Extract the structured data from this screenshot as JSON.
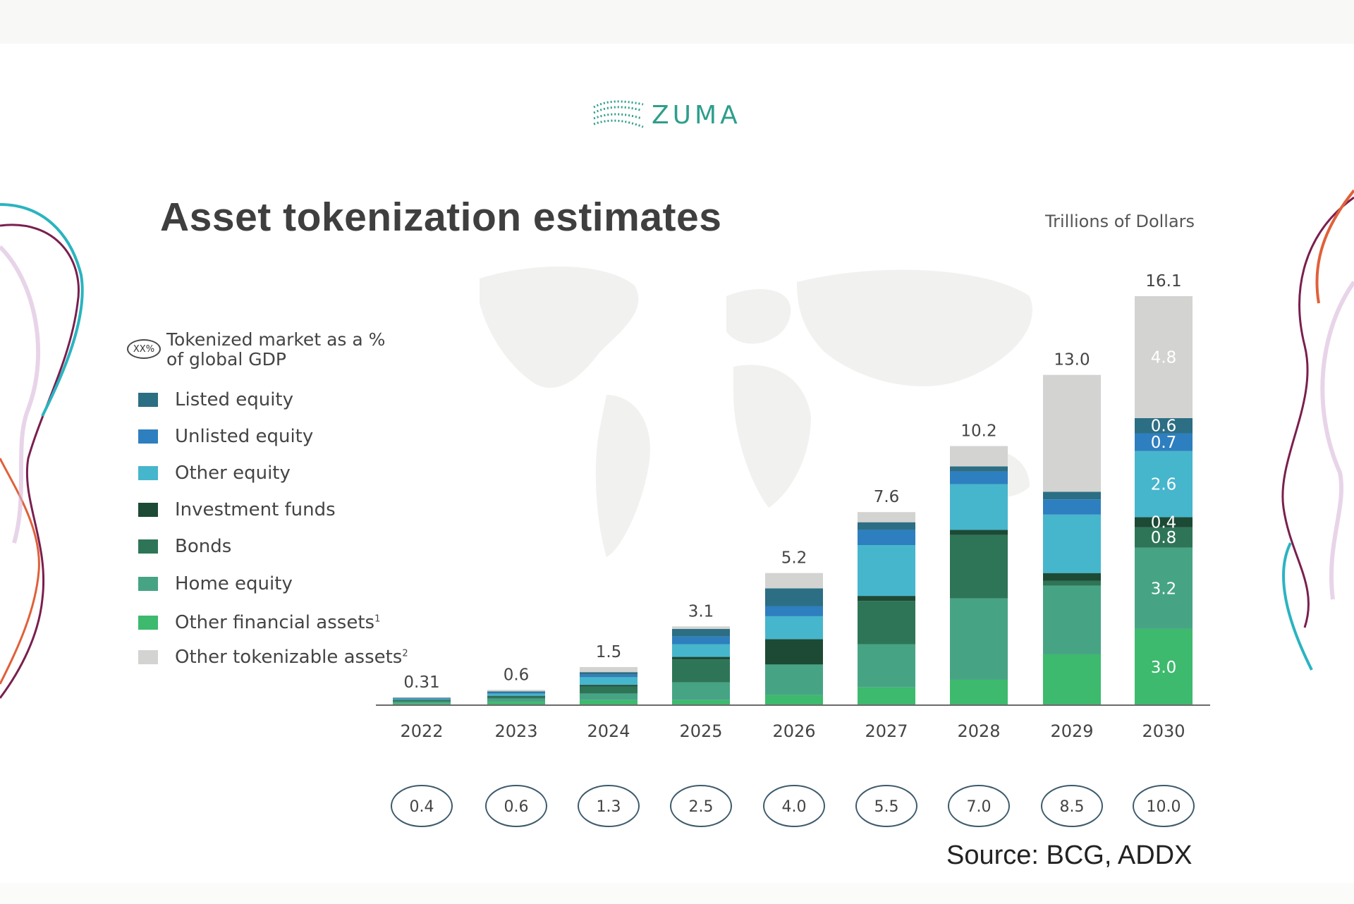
{
  "logo_text": "ZUMA",
  "title": "Asset tokenization estimates",
  "units": "Trillions of Dollars",
  "legend": {
    "gdp_oval": "XX%",
    "gdp_label": "Tokenized market as a % of global GDP",
    "items": [
      {
        "label": "Listed equity",
        "color": "#2c6e84"
      },
      {
        "label": "Unlisted equity",
        "color": "#2e7fbf"
      },
      {
        "label": "Other equity",
        "color": "#46b6cc"
      },
      {
        "label": "Investment funds",
        "color": "#1c4a35"
      },
      {
        "label": "Bonds",
        "color": "#2e7558"
      },
      {
        "label": "Home equity",
        "color": "#46a484"
      },
      {
        "label": "Other financial assets",
        "sup": "1",
        "color": "#3dba6d"
      },
      {
        "label": "Other tokenizable assets",
        "sup": "2",
        "color": "#d3d3d1"
      }
    ]
  },
  "source": "Source: BCG, ADDX",
  "chart_data": {
    "type": "bar",
    "stacked": true,
    "categories": [
      "2022",
      "2023",
      "2024",
      "2025",
      "2026",
      "2027",
      "2028",
      "2029",
      "2030"
    ],
    "totals": [
      "0.31",
      "0.6",
      "1.5",
      "3.1",
      "5.2",
      "7.6",
      "10.2",
      "13.0",
      "16.1"
    ],
    "total_values": [
      0.31,
      0.6,
      1.5,
      3.1,
      5.2,
      7.6,
      10.2,
      13.0,
      16.1
    ],
    "gdp_percent": [
      "0.4",
      "0.6",
      "1.3",
      "2.5",
      "4.0",
      "5.5",
      "7.0",
      "8.5",
      "10.0"
    ],
    "ylim": [
      0,
      16.1
    ],
    "series": [
      {
        "name": "Other financial assets",
        "color": "#3dba6d",
        "values": [
          0.06,
          0.12,
          0.2,
          0.2,
          0.4,
          0.7,
          1.0,
          2.0,
          3.0
        ]
      },
      {
        "name": "Home equity",
        "color": "#46a484",
        "values": [
          0.08,
          0.14,
          0.26,
          0.7,
          1.2,
          1.7,
          3.2,
          2.7,
          3.2
        ]
      },
      {
        "name": "Bonds",
        "color": "#2e7558",
        "values": [
          0.05,
          0.08,
          0.27,
          0.9,
          0.0,
          1.7,
          2.5,
          0.2,
          0.8
        ]
      },
      {
        "name": "Investment funds",
        "color": "#1c4a35",
        "values": [
          0.02,
          0.03,
          0.07,
          0.1,
          1.0,
          0.2,
          0.2,
          0.3,
          0.4
        ]
      },
      {
        "name": "Other equity",
        "color": "#46b6cc",
        "values": [
          0.04,
          0.08,
          0.3,
          0.5,
          0.9,
          2.0,
          1.8,
          2.3,
          2.6
        ]
      },
      {
        "name": "Unlisted equity",
        "color": "#2e7fbf",
        "values": [
          0.02,
          0.05,
          0.1,
          0.3,
          0.4,
          0.6,
          0.5,
          0.6,
          0.7
        ]
      },
      {
        "name": "Listed equity",
        "color": "#2c6e84",
        "values": [
          0.02,
          0.04,
          0.1,
          0.3,
          0.7,
          0.3,
          0.2,
          0.3,
          0.6
        ]
      },
      {
        "name": "Other tokenizable assets",
        "color": "#d3d3d1",
        "values": [
          0.02,
          0.06,
          0.2,
          0.1,
          0.6,
          0.4,
          0.8,
          4.6,
          4.8
        ]
      }
    ],
    "segment_labels": {
      "2030": [
        "3.0",
        "3.2",
        "0.8",
        "0.4",
        "2.6",
        "0.7",
        "0.6",
        "4.8"
      ]
    }
  }
}
